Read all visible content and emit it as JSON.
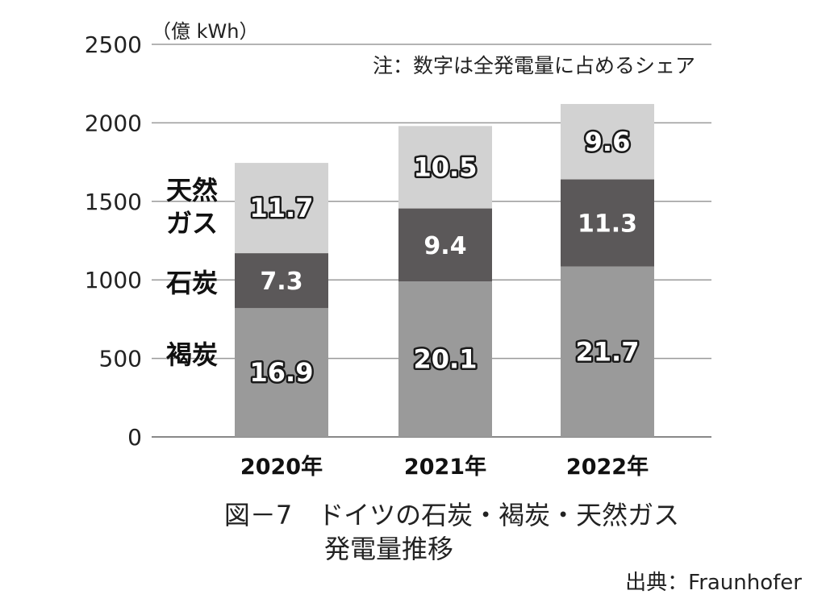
{
  "chart_data": {
    "type": "bar",
    "stacked": true,
    "unit": "（億 kWh）",
    "note": "注：数字は全発電量に占めるシェア",
    "categories": [
      "2020年",
      "2021年",
      "2022年"
    ],
    "ylim": [
      0,
      2500
    ],
    "yticks": [
      0,
      500,
      1000,
      1500,
      2000,
      2500
    ],
    "grid": true,
    "series": [
      {
        "name": "褐炭",
        "values": [
          820,
          990,
          1085
        ],
        "share_labels": [
          "16.9",
          "20.1",
          "21.7"
        ],
        "color": "#9a9a9a"
      },
      {
        "name": "石炭",
        "values": [
          350,
          465,
          555
        ],
        "share_labels": [
          "7.3",
          "9.4",
          "11.3"
        ],
        "color": "#5b5859"
      },
      {
        "name": "天然ガス",
        "values": [
          575,
          525,
          480
        ],
        "share_labels": [
          "11.7",
          "10.5",
          "9.6"
        ],
        "color": "#d2d2d2"
      }
    ],
    "legend_labels": [
      {
        "series": "天然ガス",
        "lines": [
          "天然",
          "ガス"
        ]
      },
      {
        "series": "石炭",
        "lines": [
          "石炭"
        ]
      },
      {
        "series": "褐炭",
        "lines": [
          "褐炭"
        ]
      }
    ]
  },
  "caption": {
    "line1": "図－7　ドイツの石炭・褐炭・天然ガス",
    "line2": "発電量推移"
  },
  "source": "出典：Fraunhofer"
}
